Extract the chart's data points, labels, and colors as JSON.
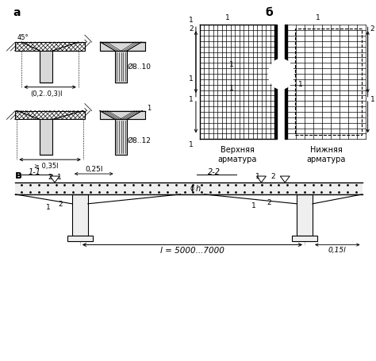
{
  "bg_color": "#ffffff",
  "label_a": "а",
  "label_b": "б",
  "label_v": "в",
  "text_diam1": "Ø8..10",
  "text_diam2": "Ø8..12",
  "text_dim1": "(0,2..0,3)l",
  "text_dim2": "≥ 0,35l",
  "text_025": "0,25l",
  "text_span": "l = 5000...7000",
  "text_015": "0,15l",
  "text_45": "45°",
  "text_11": "1-1",
  "text_22": "2-2",
  "text_h": "h",
  "text_upper": "Верхняя\nарматура",
  "text_lower": "Нижняя\nарматура",
  "line_color": "#000000",
  "fill_color": "#d8d8d8",
  "hatch_fill": "#ffffff"
}
